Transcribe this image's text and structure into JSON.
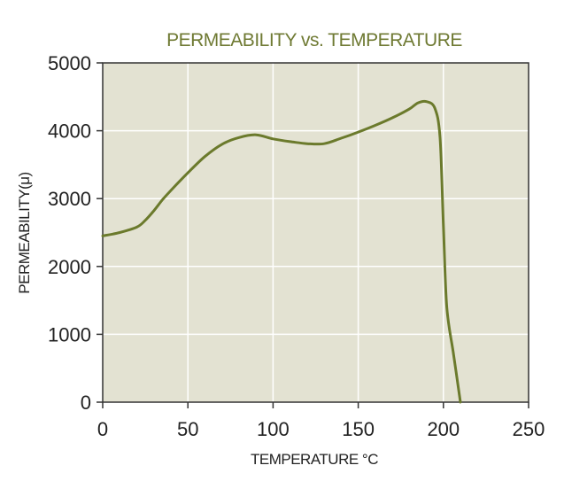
{
  "chart_data": {
    "type": "line",
    "title": "PERMEABILITY vs. TEMPERATURE",
    "xlabel": "TEMPERATURE °C",
    "ylabel": "PERMEABILITY(μ)",
    "xlim": [
      0,
      250
    ],
    "ylim": [
      0,
      5000
    ],
    "x_ticks": [
      "0",
      "50",
      "100",
      "150",
      "200",
      "250"
    ],
    "y_ticks": [
      "0",
      "1000",
      "2000",
      "3000",
      "4000",
      "5000"
    ],
    "grid": true,
    "legend": "none",
    "series": [
      {
        "color": "#6b7a2c",
        "points": [
          [
            0,
            2450
          ],
          [
            10,
            2500
          ],
          [
            20,
            2580
          ],
          [
            25,
            2680
          ],
          [
            30,
            2820
          ],
          [
            35,
            2980
          ],
          [
            40,
            3120
          ],
          [
            50,
            3380
          ],
          [
            60,
            3620
          ],
          [
            70,
            3800
          ],
          [
            80,
            3900
          ],
          [
            90,
            3940
          ],
          [
            100,
            3880
          ],
          [
            110,
            3840
          ],
          [
            120,
            3810
          ],
          [
            130,
            3810
          ],
          [
            140,
            3890
          ],
          [
            150,
            3980
          ],
          [
            160,
            4080
          ],
          [
            170,
            4190
          ],
          [
            180,
            4320
          ],
          [
            185,
            4410
          ],
          [
            190,
            4430
          ],
          [
            195,
            4330
          ],
          [
            198,
            3900
          ],
          [
            200,
            2600
          ],
          [
            202,
            1400
          ],
          [
            206,
            700
          ],
          [
            210,
            0
          ]
        ]
      }
    ],
    "colors": {
      "plot_background": "#e3e2d2",
      "grid": "#ffffff",
      "axis": "#333333",
      "title": "#6f7a33"
    }
  }
}
